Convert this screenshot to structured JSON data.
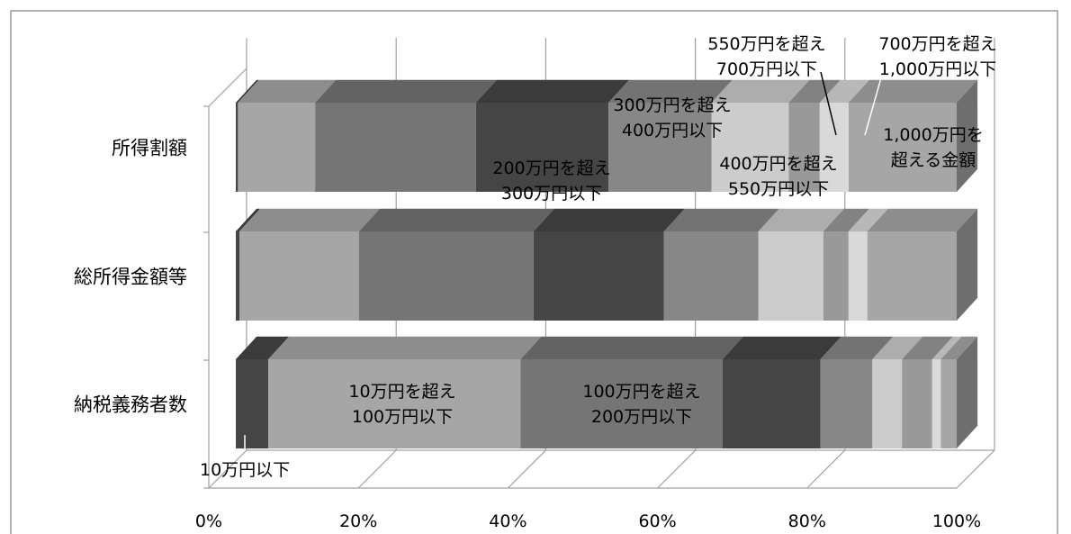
{
  "chart_data": {
    "type": "bar",
    "orientation": "horizontal",
    "stacked": "percent",
    "three_d": true,
    "title": "",
    "xlabel": "",
    "ylabel": "",
    "xlim": [
      0,
      100
    ],
    "x_ticks": [
      "0%",
      "20%",
      "40%",
      "60%",
      "80%",
      "100%"
    ],
    "categories": [
      "納税義務者数",
      "総所得金額等",
      "所得割額"
    ],
    "series": [
      {
        "name": "10万円以下",
        "values": [
          4.5,
          0.5,
          0.3
        ],
        "color": "#454545"
      },
      {
        "name": "10万円を超え\n100万円以下",
        "values": [
          35.0,
          16.6,
          10.7
        ],
        "color": "#a6a6a6"
      },
      {
        "name": "100万円を超え\n200万円以下",
        "values": [
          28.0,
          24.2,
          22.3
        ],
        "color": "#757575"
      },
      {
        "name": "200万円を超え\n300万円以下",
        "values": [
          13.6,
          18.1,
          18.4
        ],
        "color": "#454545"
      },
      {
        "name": "300万円を超え\n400万円以下",
        "values": [
          7.2,
          13.1,
          14.3
        ],
        "color": "#878787"
      },
      {
        "name": "400万円を超え\n550万円以下",
        "values": [
          4.1,
          9.0,
          10.7
        ],
        "color": "#cccccc"
      },
      {
        "name": "550万円を超え\n700万円以下",
        "values": [
          4.2,
          3.5,
          4.3
        ],
        "color": "#999999"
      },
      {
        "name": "700万円を超え\n1,000万円以下",
        "values": [
          1.2,
          2.6,
          4.0
        ],
        "color": "#d9d9d9"
      },
      {
        "name": "1,000万円を\n超える金額",
        "values": [
          2.2,
          12.4,
          15.0
        ],
        "color": "#a6a6a6"
      }
    ]
  }
}
